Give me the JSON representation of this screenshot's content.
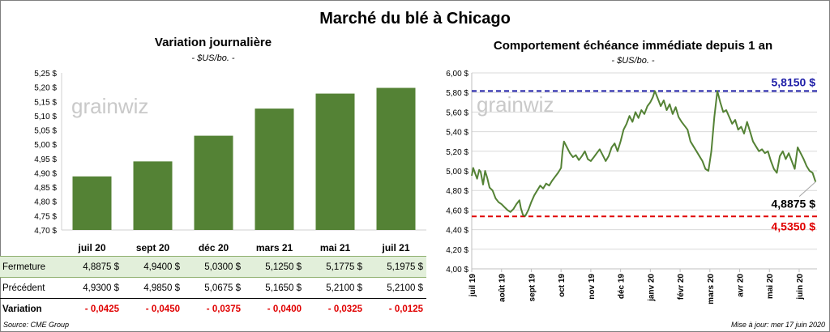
{
  "title": "Marché du blé à Chicago",
  "left": {
    "title": "Variation journalière",
    "subtitle": "- $US/bo. -",
    "watermark": "grainwiz"
  },
  "right": {
    "title": "Comportement échéance immédiate depuis 1 an",
    "subtitle": "- $US/bo. -",
    "watermark": "grainwiz",
    "high_label": "5,8150 $",
    "low_label": "4,5350 $",
    "last_label": "4,8875 $"
  },
  "table": {
    "rows": [
      {
        "label": "Fermeture",
        "values": [
          "4,8875 $",
          "4,9400 $",
          "5,0300 $",
          "5,1250 $",
          "5,1775 $",
          "5,1975 $"
        ]
      },
      {
        "label": "Précédent",
        "values": [
          "4,9300 $",
          "4,9850 $",
          "5,0675 $",
          "5,1650 $",
          "5,2100 $",
          "5,2100 $"
        ]
      },
      {
        "label": "Variation",
        "values": [
          "- 0,0425",
          "- 0,0450",
          "- 0,0375",
          "- 0,0400",
          "- 0,0325",
          "- 0,0125"
        ]
      }
    ]
  },
  "footer": {
    "source": "Source: CME Group",
    "updated": "Mise à jour: mer 17 juin 2020"
  },
  "colors": {
    "bar": "#548235",
    "line": "#548235",
    "high": "#1f1fa8",
    "low": "#e00000"
  },
  "chart_data": [
    {
      "type": "bar",
      "title": "Variation journalière",
      "subtitle": "- $US/bo. -",
      "categories": [
        "juil 20",
        "sept 20",
        "déc 20",
        "mars 21",
        "mai 21",
        "juil 21"
      ],
      "values": [
        4.8875,
        4.94,
        5.03,
        5.125,
        5.1775,
        5.1975
      ],
      "ylim": [
        4.7,
        5.25
      ],
      "ytick_step": 0.05,
      "ytick_labels": [
        "4,70 $",
        "4,75 $",
        "4,80 $",
        "4,85 $",
        "4,90 $",
        "4,95 $",
        "5,00 $",
        "5,05 $",
        "5,10 $",
        "5,15 $",
        "5,20 $",
        "5,25 $"
      ],
      "grid": false
    },
    {
      "type": "line",
      "title": "Comportement échéance immédiate depuis 1 an",
      "subtitle": "- $US/bo. -",
      "xlabels": [
        "juil 19",
        "août 19",
        "sept 19",
        "oct 19",
        "nov 19",
        "déc 19",
        "janv 20",
        "févr 20",
        "mars 20",
        "avr 20",
        "mai 20",
        "juin 20"
      ],
      "x_months": [
        0,
        1,
        2,
        3,
        4,
        5,
        6,
        7,
        8,
        9,
        10,
        11
      ],
      "y": [
        [
          0.0,
          4.95
        ],
        [
          0.05,
          5.03
        ],
        [
          0.12,
          4.97
        ],
        [
          0.18,
          4.92
        ],
        [
          0.25,
          5.01
        ],
        [
          0.3,
          4.99
        ],
        [
          0.38,
          4.86
        ],
        [
          0.45,
          5.0
        ],
        [
          0.52,
          4.93
        ],
        [
          0.6,
          4.83
        ],
        [
          0.7,
          4.8
        ],
        [
          0.8,
          4.72
        ],
        [
          0.9,
          4.68
        ],
        [
          1.0,
          4.66
        ],
        [
          1.1,
          4.63
        ],
        [
          1.2,
          4.6
        ],
        [
          1.3,
          4.58
        ],
        [
          1.4,
          4.61
        ],
        [
          1.5,
          4.66
        ],
        [
          1.6,
          4.7
        ],
        [
          1.65,
          4.62
        ],
        [
          1.72,
          4.55
        ],
        [
          1.8,
          4.54
        ],
        [
          1.9,
          4.6
        ],
        [
          2.0,
          4.68
        ],
        [
          2.1,
          4.75
        ],
        [
          2.2,
          4.8
        ],
        [
          2.3,
          4.85
        ],
        [
          2.4,
          4.82
        ],
        [
          2.5,
          4.87
        ],
        [
          2.6,
          4.85
        ],
        [
          2.7,
          4.9
        ],
        [
          2.8,
          4.94
        ],
        [
          2.9,
          4.98
        ],
        [
          3.0,
          5.03
        ],
        [
          3.05,
          5.2
        ],
        [
          3.1,
          5.3
        ],
        [
          3.2,
          5.24
        ],
        [
          3.3,
          5.18
        ],
        [
          3.4,
          5.14
        ],
        [
          3.5,
          5.16
        ],
        [
          3.6,
          5.11
        ],
        [
          3.7,
          5.15
        ],
        [
          3.8,
          5.2
        ],
        [
          3.9,
          5.12
        ],
        [
          4.0,
          5.1
        ],
        [
          4.1,
          5.14
        ],
        [
          4.2,
          5.18
        ],
        [
          4.3,
          5.22
        ],
        [
          4.4,
          5.16
        ],
        [
          4.5,
          5.1
        ],
        [
          4.6,
          5.15
        ],
        [
          4.7,
          5.24
        ],
        [
          4.8,
          5.28
        ],
        [
          4.9,
          5.2
        ],
        [
          5.0,
          5.3
        ],
        [
          5.1,
          5.42
        ],
        [
          5.2,
          5.48
        ],
        [
          5.3,
          5.56
        ],
        [
          5.4,
          5.5
        ],
        [
          5.5,
          5.6
        ],
        [
          5.6,
          5.54
        ],
        [
          5.7,
          5.62
        ],
        [
          5.8,
          5.58
        ],
        [
          5.9,
          5.66
        ],
        [
          6.0,
          5.7
        ],
        [
          6.08,
          5.75
        ],
        [
          6.15,
          5.815
        ],
        [
          6.25,
          5.74
        ],
        [
          6.35,
          5.66
        ],
        [
          6.45,
          5.72
        ],
        [
          6.55,
          5.62
        ],
        [
          6.65,
          5.68
        ],
        [
          6.75,
          5.58
        ],
        [
          6.85,
          5.65
        ],
        [
          6.95,
          5.55
        ],
        [
          7.05,
          5.5
        ],
        [
          7.15,
          5.46
        ],
        [
          7.25,
          5.42
        ],
        [
          7.35,
          5.3
        ],
        [
          7.45,
          5.25
        ],
        [
          7.55,
          5.2
        ],
        [
          7.65,
          5.15
        ],
        [
          7.75,
          5.1
        ],
        [
          7.85,
          5.02
        ],
        [
          7.95,
          5.0
        ],
        [
          8.05,
          5.2
        ],
        [
          8.15,
          5.55
        ],
        [
          8.25,
          5.815
        ],
        [
          8.35,
          5.7
        ],
        [
          8.45,
          5.6
        ],
        [
          8.55,
          5.62
        ],
        [
          8.65,
          5.55
        ],
        [
          8.75,
          5.48
        ],
        [
          8.85,
          5.52
        ],
        [
          8.95,
          5.42
        ],
        [
          9.05,
          5.45
        ],
        [
          9.15,
          5.38
        ],
        [
          9.25,
          5.5
        ],
        [
          9.35,
          5.4
        ],
        [
          9.45,
          5.3
        ],
        [
          9.55,
          5.25
        ],
        [
          9.65,
          5.2
        ],
        [
          9.75,
          5.22
        ],
        [
          9.85,
          5.18
        ],
        [
          9.95,
          5.2
        ],
        [
          10.05,
          5.1
        ],
        [
          10.15,
          5.02
        ],
        [
          10.25,
          4.98
        ],
        [
          10.35,
          5.15
        ],
        [
          10.45,
          5.2
        ],
        [
          10.55,
          5.12
        ],
        [
          10.65,
          5.18
        ],
        [
          10.75,
          5.1
        ],
        [
          10.85,
          5.02
        ],
        [
          10.95,
          5.24
        ],
        [
          11.05,
          5.18
        ],
        [
          11.15,
          5.12
        ],
        [
          11.25,
          5.05
        ],
        [
          11.35,
          5.0
        ],
        [
          11.45,
          4.98
        ],
        [
          11.55,
          4.8875
        ]
      ],
      "ylim": [
        4.0,
        6.0
      ],
      "ytick_step": 0.2,
      "ytick_labels": [
        "4,00 $",
        "4,20 $",
        "4,40 $",
        "4,60 $",
        "4,80 $",
        "5,00 $",
        "5,20 $",
        "5,40 $",
        "5,60 $",
        "5,80 $",
        "6,00 $"
      ],
      "reference_lines": [
        {
          "label": "5,8150 $",
          "value": 5.815,
          "style": "dashed"
        },
        {
          "label": "4,5350 $",
          "value": 4.535,
          "style": "dashed"
        }
      ],
      "last_value": 4.8875,
      "grid": "horizontal"
    }
  ]
}
